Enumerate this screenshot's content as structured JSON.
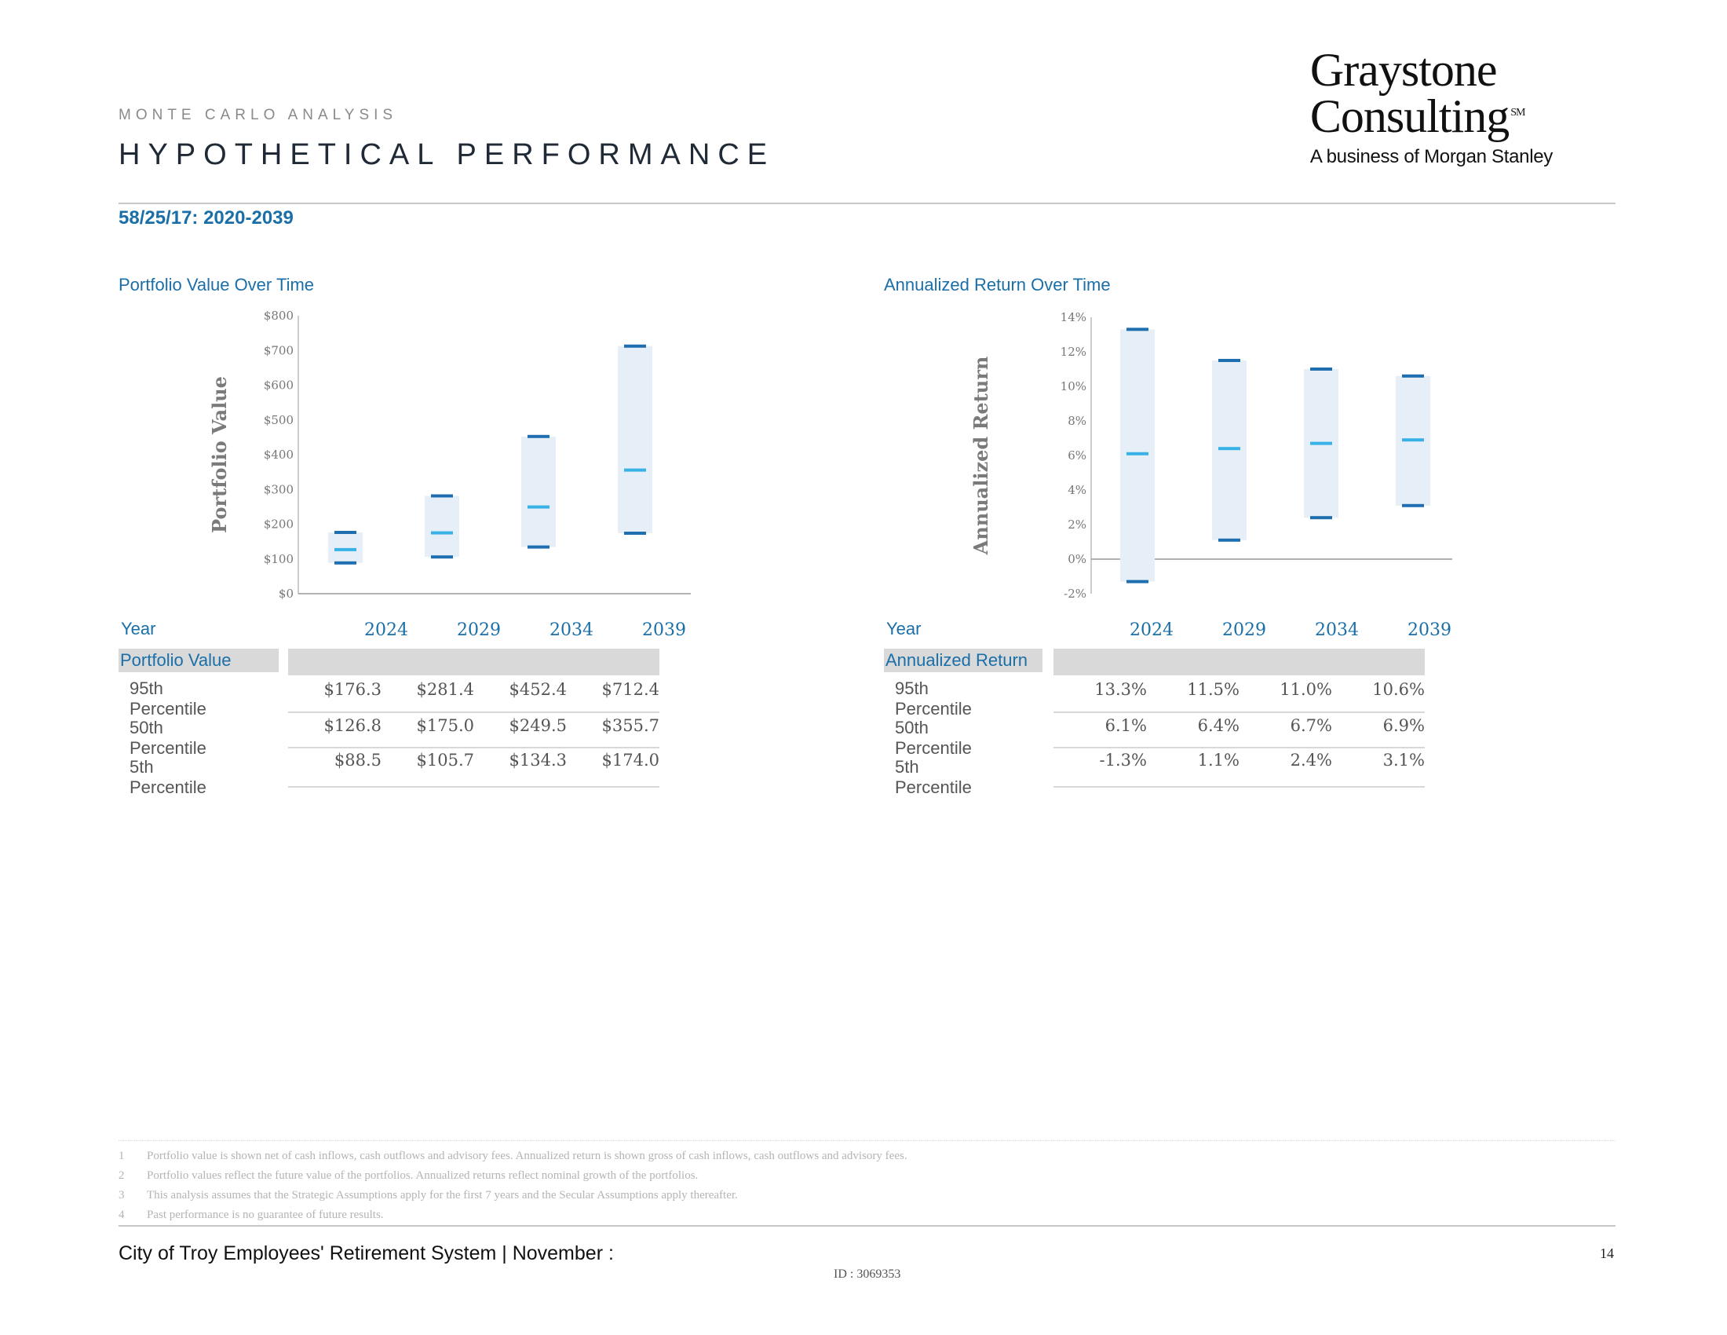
{
  "header": {
    "eyebrow": "MONTE CARLO ANALYSIS",
    "title": "HYPOTHETICAL PERFORMANCE",
    "scenario": "58/25/17: 2020-2039"
  },
  "logo": {
    "line1": "Graystone",
    "line2": "Consulting",
    "sm": "SM",
    "tagline": "A business of Morgan Stanley"
  },
  "left": {
    "chart_title": "Portfolio Value Over Time",
    "ylabel": "Portfolio Value",
    "yticks": [
      "$800",
      "$700",
      "$600",
      "$500",
      "$400",
      "$300",
      "$200",
      "$100",
      "$0"
    ],
    "table": {
      "year_label": "Year",
      "years": [
        "2024",
        "2029",
        "2034",
        "2039"
      ],
      "section_label": "Portfolio Value",
      "rows": [
        {
          "label": "95th Percentile",
          "values": [
            "$176.3",
            "$281.4",
            "$452.4",
            "$712.4"
          ]
        },
        {
          "label": "50th Percentile",
          "values": [
            "$126.8",
            "$175.0",
            "$249.5",
            "$355.7"
          ]
        },
        {
          "label": "5th Percentile",
          "values": [
            "$88.5",
            "$105.7",
            "$134.3",
            "$174.0"
          ]
        }
      ]
    }
  },
  "right": {
    "chart_title": "Annualized Return Over Time",
    "ylabel": "Annualized Return",
    "yticks": [
      "14%",
      "12%",
      "10%",
      "8%",
      "6%",
      "4%",
      "2%",
      "0%",
      "-2%"
    ],
    "table": {
      "year_label": "Year",
      "years": [
        "2024",
        "2029",
        "2034",
        "2039"
      ],
      "section_label": "Annualized Return",
      "rows": [
        {
          "label": "95th Percentile",
          "values": [
            "13.3%",
            "11.5%",
            "11.0%",
            "10.6%"
          ]
        },
        {
          "label": "50th Percentile",
          "values": [
            "6.1%",
            "6.4%",
            "6.7%",
            "6.9%"
          ]
        },
        {
          "label": "5th Percentile",
          "values": [
            "-1.3%",
            "1.1%",
            "2.4%",
            "3.1%"
          ]
        }
      ]
    }
  },
  "chart_data": [
    {
      "type": "bar",
      "title": "Portfolio Value Over Time",
      "ylabel": "Portfolio Value",
      "categories": [
        "2024",
        "2029",
        "2034",
        "2039"
      ],
      "ylim": [
        0,
        800
      ],
      "series": [
        {
          "name": "95th Percentile",
          "values": [
            176.3,
            281.4,
            452.4,
            712.4
          ]
        },
        {
          "name": "50th Percentile",
          "values": [
            126.8,
            175.0,
            249.5,
            355.7
          ]
        },
        {
          "name": "5th Percentile",
          "values": [
            88.5,
            105.7,
            134.3,
            174.0
          ]
        }
      ]
    },
    {
      "type": "bar",
      "title": "Annualized Return Over Time",
      "ylabel": "Annualized Return",
      "categories": [
        "2024",
        "2029",
        "2034",
        "2039"
      ],
      "ylim": [
        -2,
        14
      ],
      "series": [
        {
          "name": "95th Percentile",
          "values": [
            13.3,
            11.5,
            11.0,
            10.6
          ]
        },
        {
          "name": "50th Percentile",
          "values": [
            6.1,
            6.4,
            6.7,
            6.9
          ]
        },
        {
          "name": "5th Percentile",
          "values": [
            -1.3,
            1.1,
            2.4,
            3.1
          ]
        }
      ]
    }
  ],
  "colors": {
    "band": "#e6eff8",
    "high_low_marker": "#1f6fb0",
    "median_marker": "#38b1e6",
    "accent_text": "#1a6fa8"
  },
  "footnotes": [
    {
      "num": "1",
      "text": "Portfolio value is shown net of cash inflows, cash outflows and advisory fees. Annualized return is shown gross of cash inflows, cash outflows and advisory fees."
    },
    {
      "num": "2",
      "text": "Portfolio values reflect the future value of the portfolios. Annualized returns reflect nominal growth of the portfolios."
    },
    {
      "num": "3",
      "text": "This analysis assumes that the Strategic Assumptions apply for the first 7 years and the Secular Assumptions apply thereafter."
    },
    {
      "num": "4",
      "text": "Past performance is no guarantee of future results."
    }
  ],
  "footer": {
    "client": "City of Troy Employees' Retirement System | November :",
    "page_number": "14",
    "doc_id": "ID : 3069353"
  }
}
